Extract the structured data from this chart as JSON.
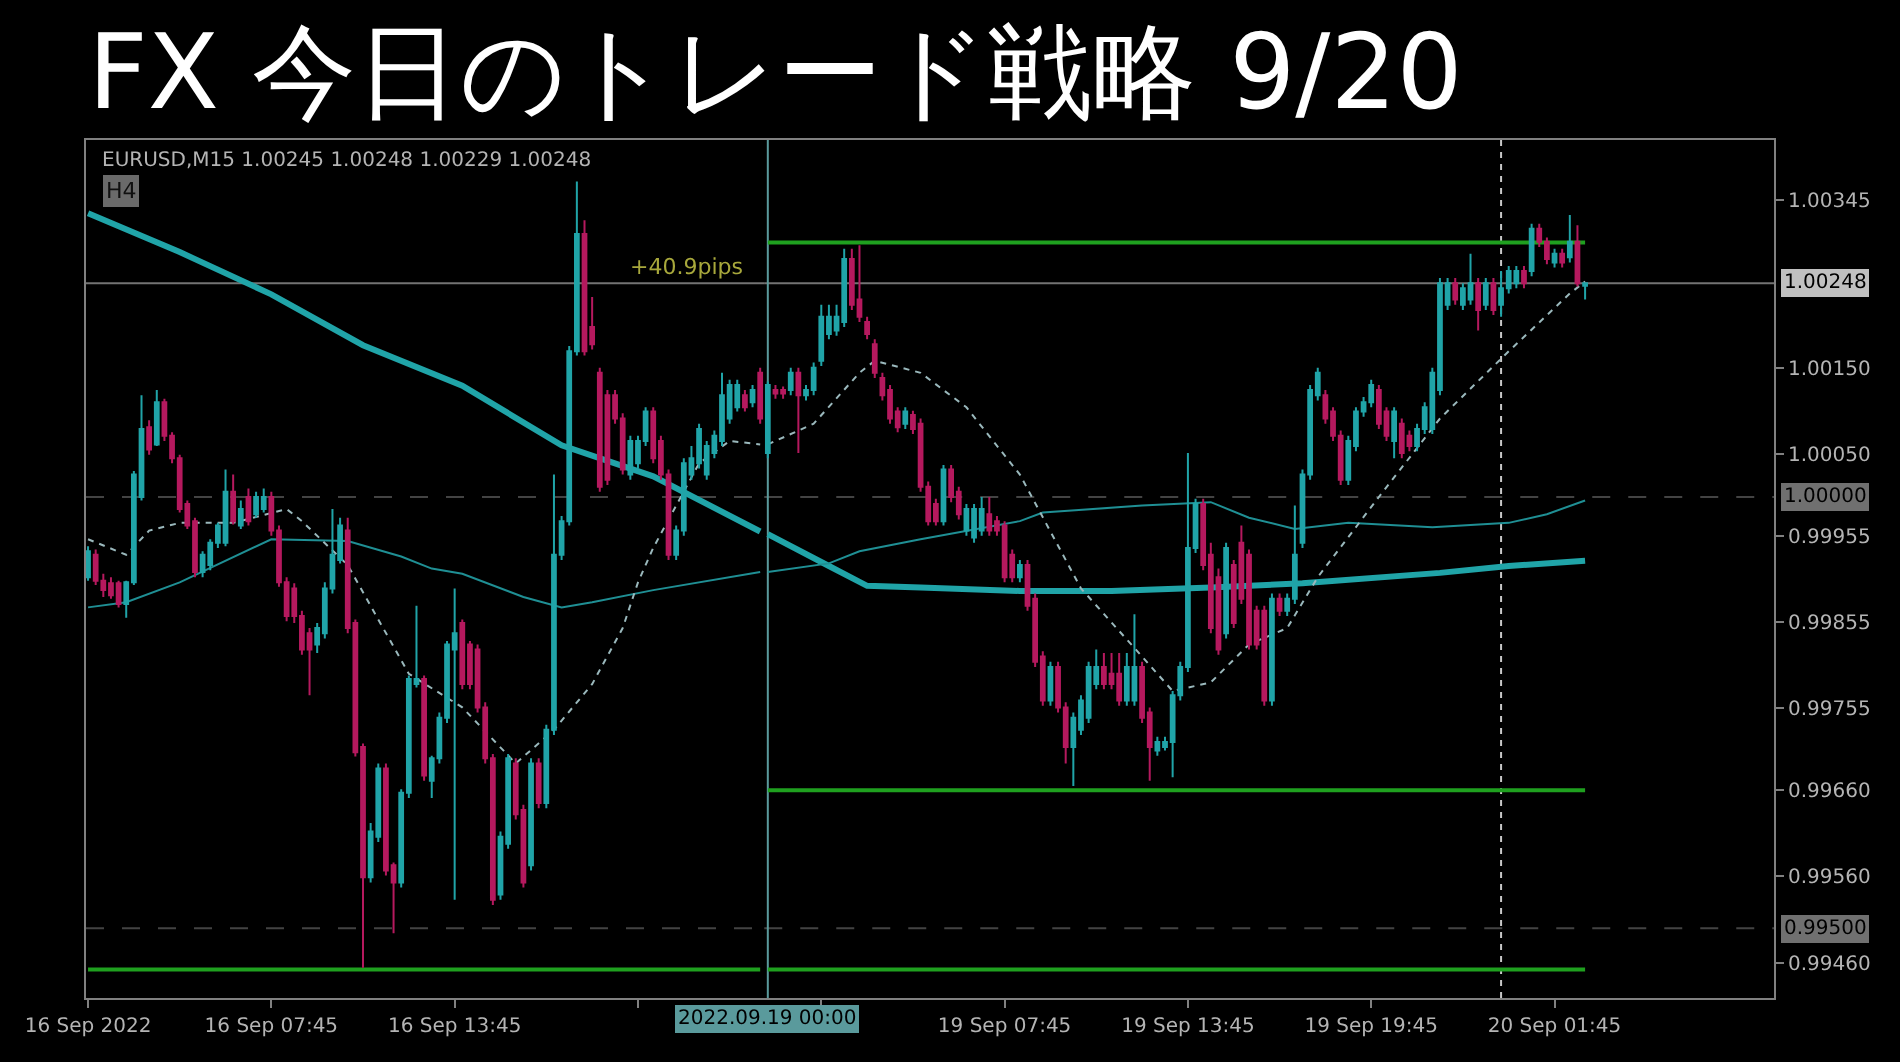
{
  "chart_data": [
    {
      "type": "candlestick",
      "title": "FX 今日のトレード戦略 9/20",
      "subtitle": "EURUSD,M15 1.00245 1.00248 1.00229 1.00248",
      "annotations": [
        "H4",
        "+40.9pips"
      ],
      "x": [
        "2022-09-16T01:45",
        "2022-09-16T02:00",
        "2022-09-16T02:15",
        "2022-09-16T02:30",
        "2022-09-16T02:45",
        "2022-09-16T03:00",
        "2022-09-16T03:15",
        "2022-09-16T03:30",
        "2022-09-16T03:45",
        "2022-09-16T04:00",
        "2022-09-16T04:15",
        "2022-09-16T04:30",
        "2022-09-16T04:45",
        "2022-09-16T05:00",
        "2022-09-16T05:15",
        "2022-09-16T05:30",
        "2022-09-16T05:45",
        "2022-09-16T06:00",
        "2022-09-16T06:15",
        "2022-09-16T06:30",
        "2022-09-16T06:45",
        "2022-09-16T07:00",
        "2022-09-16T07:15",
        "2022-09-16T07:30",
        "2022-09-16T07:45",
        "2022-09-16T08:00",
        "2022-09-16T08:15",
        "2022-09-16T08:30",
        "2022-09-16T08:45",
        "2022-09-16T09:00",
        "2022-09-16T09:15",
        "2022-09-16T09:30",
        "2022-09-16T09:45",
        "2022-09-16T10:00",
        "2022-09-16T10:15",
        "2022-09-16T10:30",
        "2022-09-16T10:45",
        "2022-09-16T11:00",
        "2022-09-16T11:15",
        "2022-09-16T11:30",
        "2022-09-16T11:45",
        "2022-09-16T12:00",
        "2022-09-16T12:15",
        "2022-09-16T12:30",
        "2022-09-16T12:45",
        "2022-09-16T13:00",
        "2022-09-16T13:15",
        "2022-09-16T13:30",
        "2022-09-16T13:45",
        "2022-09-16T14:00",
        "2022-09-16T14:15",
        "2022-09-16T14:30",
        "2022-09-16T14:45",
        "2022-09-16T15:00",
        "2022-09-16T15:15",
        "2022-09-16T15:30",
        "2022-09-16T15:45",
        "2022-09-16T16:00",
        "2022-09-16T16:15",
        "2022-09-16T16:30",
        "2022-09-16T16:45",
        "2022-09-16T17:00",
        "2022-09-16T17:15",
        "2022-09-16T17:30",
        "2022-09-16T17:45",
        "2022-09-16T18:00",
        "2022-09-16T18:15",
        "2022-09-16T18:30",
        "2022-09-16T18:45",
        "2022-09-16T19:00",
        "2022-09-16T19:15",
        "2022-09-16T19:30",
        "2022-09-16T19:45",
        "2022-09-16T20:00",
        "2022-09-16T20:15",
        "2022-09-16T20:30",
        "2022-09-16T20:45",
        "2022-09-16T21:00",
        "2022-09-16T21:15",
        "2022-09-16T21:30",
        "2022-09-16T21:45",
        "2022-09-16T22:00",
        "2022-09-16T22:15",
        "2022-09-16T22:30",
        "2022-09-16T22:45",
        "2022-09-16T23:00",
        "2022-09-16T23:15",
        "2022-09-16T23:30",
        "2022-09-16T23:45"
      ],
      "ohlc": [
        [
          0.99907,
          0.99943,
          0.99903,
          0.99937
        ],
        [
          0.99933,
          0.99939,
          0.99898,
          0.99903
        ],
        [
          0.99903,
          0.99911,
          0.99884,
          0.99892
        ],
        [
          0.999,
          0.99907,
          0.99882,
          0.99886
        ],
        [
          0.999,
          0.99903,
          0.99872,
          0.99876
        ],
        [
          0.99876,
          0.99903,
          0.9986,
          0.99901
        ],
        [
          0.99901,
          1.0003,
          0.99898,
          1.00026
        ],
        [
          1.0,
          1.00118,
          0.99996,
          1.00079
        ],
        [
          1.00081,
          1.00089,
          1.00049,
          1.00055
        ],
        [
          1.00061,
          1.00124,
          1.00059,
          1.0011
        ],
        [
          1.0011,
          1.00114,
          1.00065,
          1.00071
        ],
        [
          1.00071,
          1.00075,
          1.00039,
          1.00045
        ],
        [
          1.00045,
          1.00049,
          0.99982,
          0.99986
        ],
        [
          0.99992,
          0.99996,
          0.99963,
          0.99967
        ],
        [
          0.99972,
          0.99976,
          0.99907,
          0.99913
        ],
        [
          0.99913,
          0.99937,
          0.99907,
          0.99933
        ],
        [
          0.99921,
          0.99951,
          0.99915,
          0.99947
        ],
        [
          0.99947,
          0.9997,
          0.99941,
          0.99967
        ],
        [
          0.99947,
          1.00032,
          0.99943,
          1.00006
        ],
        [
          1.00006,
          1.00026,
          0.99968,
          0.99972
        ],
        [
          0.99967,
          0.99996,
          0.99963,
          0.99986
        ],
        [
          1.0,
          1.0001,
          0.99967,
          0.99972
        ],
        [
          0.9998,
          1.00006,
          0.99976,
          1.0
        ],
        [
          0.99986,
          1.0001,
          0.99982,
          1.0
        ],
        [
          1.0,
          1.00006,
          0.99955,
          0.99961
        ],
        [
          0.99961,
          0.99967,
          0.99896,
          0.99901
        ],
        [
          0.99901,
          0.99907,
          0.99856,
          0.99862
        ],
        [
          0.99894,
          0.999,
          0.99854,
          0.99862
        ],
        [
          0.99862,
          0.99868,
          0.99817,
          0.99823
        ],
        [
          0.99842,
          0.99848,
          0.9977,
          0.99823
        ],
        [
          0.99829,
          0.99854,
          0.99819,
          0.99848
        ],
        [
          0.99842,
          0.99901,
          0.99836,
          0.99894
        ],
        [
          0.99894,
          0.99986,
          0.99888,
          0.99933
        ],
        [
          0.99927,
          0.99976,
          0.99923,
          0.99967
        ],
        [
          0.99961,
          0.99976,
          0.99842,
          0.99848
        ],
        [
          0.99854,
          0.99858,
          0.99699,
          0.99704
        ],
        [
          0.9971,
          0.99714,
          0.99454,
          0.99559
        ],
        [
          0.99559,
          0.99622,
          0.99553,
          0.99612
        ],
        [
          0.99606,
          0.99691,
          0.996,
          0.99685
        ],
        [
          0.99685,
          0.99691,
          0.99561,
          0.99567
        ],
        [
          0.99573,
          0.99576,
          0.99494,
          0.99553
        ],
        [
          0.99553,
          0.99661,
          0.99547,
          0.99657
        ],
        [
          0.99657,
          0.99793,
          0.99651,
          0.99789
        ],
        [
          0.99783,
          0.99874,
          0.99779,
          0.99789
        ],
        [
          0.99789,
          0.99793,
          0.99671,
          0.99677
        ],
        [
          0.99671,
          0.997,
          0.99651,
          0.99697
        ],
        [
          0.99697,
          0.9975,
          0.99691,
          0.99744
        ],
        [
          0.99744,
          0.99833,
          0.99738,
          0.99829
        ],
        [
          0.99823,
          0.99894,
          0.99533,
          0.99842
        ],
        [
          0.99854,
          0.99858,
          0.99777,
          0.99783
        ],
        [
          0.99829,
          0.99833,
          0.99777,
          0.99783
        ],
        [
          0.99823,
          0.99829,
          0.9975,
          0.99756
        ],
        [
          0.99756,
          0.99762,
          0.99691,
          0.99697
        ],
        [
          0.99697,
          0.99702,
          0.99527,
          0.99533
        ],
        [
          0.99539,
          0.99612,
          0.99533,
          0.99606
        ],
        [
          0.99598,
          0.99702,
          0.99592,
          0.99697
        ],
        [
          0.99691,
          0.99697,
          0.99626,
          0.99632
        ],
        [
          0.99637,
          0.99643,
          0.99547,
          0.99553
        ],
        [
          0.99573,
          0.99697,
          0.99567,
          0.99691
        ],
        [
          0.99691,
          0.99697,
          0.99639,
          0.99645
        ],
        [
          0.99645,
          0.99736,
          0.99639,
          0.9973
        ],
        [
          0.9973,
          1.00026,
          0.99724,
          0.99933
        ],
        [
          0.99933,
          0.99978,
          0.99927,
          0.99972
        ],
        [
          0.99972,
          1.00175,
          0.99967,
          1.00169
        ],
        [
          1.00169,
          1.00366,
          1.00164,
          1.00305
        ],
        [
          1.00305,
          1.00321,
          1.00164,
          1.00169
        ],
        [
          1.00197,
          1.00232,
          1.00171,
          1.00177
        ],
        [
          1.00144,
          1.0015,
          1.00006,
          1.00012
        ],
        [
          1.00118,
          1.00124,
          1.00014,
          1.0002
        ],
        [
          1.00118,
          1.00124,
          1.00085,
          1.00091
        ],
        [
          1.00091,
          1.00097,
          1.00026,
          1.00032
        ],
        [
          1.00026,
          1.00071,
          1.0002,
          1.00065
        ],
        [
          1.00039,
          1.00071,
          1.00033,
          1.00065
        ],
        [
          1.00065,
          1.00104,
          1.00059,
          1.00099
        ],
        [
          1.00099,
          1.00104,
          1.00039,
          1.00045
        ],
        [
          1.00065,
          1.00071,
          1.0002,
          1.00026
        ],
        [
          1.00026,
          1.00032,
          0.99927,
          0.99933
        ],
        [
          0.99933,
          0.99967,
          0.99927,
          0.99961
        ],
        [
          0.99961,
          1.00045,
          0.99955,
          1.00039
        ],
        [
          1.00026,
          1.00059,
          1.0002,
          1.00045
        ],
        [
          1.00039,
          1.00085,
          1.00033,
          1.00079
        ],
        [
          1.00026,
          1.00065,
          1.0002,
          1.00059
        ],
        [
          1.00051,
          1.00077,
          1.00045,
          1.00071
        ],
        [
          1.00065,
          1.00144,
          1.00059,
          1.00118
        ],
        [
          1.00091,
          1.00136,
          1.00085,
          1.0013
        ],
        [
          1.00104,
          1.00136,
          1.00099,
          1.0013
        ],
        [
          1.00118,
          1.00124,
          1.00099,
          1.00104
        ],
        [
          1.0011,
          1.0013,
          1.00104,
          1.00124
        ],
        [
          1.00144,
          1.0015,
          1.00085,
          1.00091
        ]
      ],
      "colors": [
        "#20a4a8",
        "#b5195e",
        "#b5195e",
        "#b5195e",
        "#b5195e",
        "#20a4a8",
        "#20a4a8",
        "#20a4a8",
        "#b5195e",
        "#20a4a8",
        "#b5195e",
        "#b5195e",
        "#b5195e",
        "#b5195e",
        "#b5195e",
        "#20a4a8",
        "#20a4a8",
        "#20a4a8",
        "#20a4a8",
        "#b5195e",
        "#20a4a8",
        "#b5195e",
        "#20a4a8",
        "#20a4a8",
        "#b5195e",
        "#b5195e",
        "#b5195e",
        "#b5195e",
        "#b5195e",
        "#b5195e",
        "#20a4a8",
        "#20a4a8",
        "#20a4a8",
        "#20a4a8",
        "#b5195e",
        "#b5195e",
        "#b5195e",
        "#20a4a8",
        "#20a4a8",
        "#b5195e",
        "#b5195e",
        "#20a4a8",
        "#20a4a8",
        "#20a4a8",
        "#b5195e",
        "#20a4a8",
        "#20a4a8",
        "#20a4a8",
        "#20a4a8",
        "#b5195e",
        "#b5195e",
        "#b5195e",
        "#b5195e",
        "#b5195e",
        "#20a4a8",
        "#20a4a8",
        "#b5195e",
        "#b5195e",
        "#20a4a8",
        "#b5195e",
        "#20a4a8",
        "#20a4a8",
        "#20a4a8",
        "#20a4a8",
        "#20a4a8",
        "#b5195e",
        "#b5195e",
        "#b5195e",
        "#b5195e",
        "#b5195e",
        "#b5195e",
        "#20a4a8",
        "#20a4a8",
        "#20a4a8",
        "#b5195e",
        "#b5195e",
        "#b5195e",
        "#20a4a8",
        "#20a4a8",
        "#20a4a8",
        "#20a4a8",
        "#20a4a8",
        "#20a4a8",
        "#20a4a8",
        "#20a4a8",
        "#20a4a8",
        "#b5195e",
        "#20a4a8",
        "#b5195e"
      ],
      "series": [
        {
          "type": "line",
          "color": "#20a4a8",
          "x": [
            "2022-09-16T01:45",
            "2022-09-16T04:45",
            "2022-09-16T07:45",
            "2022-09-16T10:45",
            "2022-09-16T14:00",
            "2022-09-16T17:15",
            "2022-09-16T20:15",
            "2022-09-16T23:45"
          ],
          "values": [
            1.00329,
            1.00284,
            1.00235,
            1.00176,
            1.00129,
            1.0006,
            1.00024,
            0.9996
          ]
        },
        {
          "type": "line",
          "color": "#1f8f94",
          "x": [
            "2022-09-16T01:45",
            "2022-09-16T03:00",
            "2022-09-16T04:45",
            "2022-09-16T07:45",
            "2022-09-16T10:15",
            "2022-09-16T12:00",
            "2022-09-16T13:00",
            "2022-09-16T14:00",
            "2022-09-16T16:00",
            "2022-09-16T17:15",
            "2022-09-16T18:15",
            "2022-09-16T20:15",
            "2022-09-16T23:45"
          ],
          "values": [
            0.99872,
            0.99878,
            0.99901,
            0.99951,
            0.99949,
            0.99931,
            0.99917,
            0.99911,
            0.99884,
            0.99872,
            0.99878,
            0.99892,
            0.99913
          ]
        },
        {
          "type": "line",
          "color": "#9ab8bc",
          "line_style": "dotted",
          "x": [
            "2022-09-16T01:45",
            "2022-09-16T03:00",
            "2022-09-16T03:45",
            "2022-09-16T04:45",
            "2022-09-16T06:30",
            "2022-09-16T08:15",
            "2022-09-16T08:45",
            "2022-09-16T10:15",
            "2022-09-16T12:15",
            "2022-09-16T14:00",
            "2022-09-16T15:45",
            "2022-09-16T17:00",
            "2022-09-16T18:15",
            "2022-09-16T19:15",
            "2022-09-16T19:45",
            "2022-09-16T20:15",
            "2022-09-16T21:45",
            "2022-09-16T22:45",
            "2022-09-16T23:45"
          ],
          "values": [
            0.99951,
            0.99933,
            0.99961,
            0.9997,
            0.9997,
            0.99986,
            0.99972,
            0.99921,
            0.99795,
            0.99756,
            0.99691,
            0.9973,
            0.99783,
            0.99848,
            0.99901,
            0.99941,
            1.00039,
            1.00065,
            1.00061
          ]
        },
        {
          "type": "line",
          "color": "#1fa01f",
          "x": [
            "2022-09-16T01:45",
            "2022-09-16T23:45"
          ],
          "values": [
            0.99452,
            0.99452
          ]
        }
      ],
      "xlim": [
        "2022-09-16T01:41",
        "2022-09-16T23:53"
      ],
      "xticks": [
        {
          "value": "2022-09-16T01:45",
          "label": "16 Sep 2022"
        },
        {
          "value": "2022-09-16T07:45",
          "label": "16 Sep 07:45"
        },
        {
          "value": "2022-09-16T13:45",
          "label": "16 Sep 13:45"
        },
        {
          "value": "2022-09-16T19:45",
          "label": null
        }
      ],
      "ylim": [
        0.99419,
        1.00414
      ],
      "tick_labels": "x",
      "ref_lines": [
        {
          "axis": "y",
          "value": 1.00248,
          "color": "#c0c0c0"
        },
        {
          "axis": "y",
          "value": 1.0,
          "color": "#707070",
          "line_style": "dashed"
        },
        {
          "axis": "y",
          "value": 0.995,
          "color": "#707070",
          "line_style": "dashed"
        }
      ]
    },
    {
      "type": "candlestick",
      "x": [
        "2022-09-19T00:00",
        "2022-09-19T00:15",
        "2022-09-19T00:30",
        "2022-09-19T00:45",
        "2022-09-19T01:00",
        "2022-09-19T01:15",
        "2022-09-19T01:30",
        "2022-09-19T01:45",
        "2022-09-19T02:00",
        "2022-09-19T02:15",
        "2022-09-19T02:30",
        "2022-09-19T02:45",
        "2022-09-19T03:00",
        "2022-09-19T03:15",
        "2022-09-19T03:30",
        "2022-09-19T03:45",
        "2022-09-19T04:00",
        "2022-09-19T04:15",
        "2022-09-19T04:30",
        "2022-09-19T04:45",
        "2022-09-19T05:00",
        "2022-09-19T05:15",
        "2022-09-19T05:30",
        "2022-09-19T05:45",
        "2022-09-19T06:00",
        "2022-09-19T06:15",
        "2022-09-19T06:30",
        "2022-09-19T06:45",
        "2022-09-19T07:00",
        "2022-09-19T07:15",
        "2022-09-19T07:30",
        "2022-09-19T07:45",
        "2022-09-19T08:00",
        "2022-09-19T08:15",
        "2022-09-19T08:30",
        "2022-09-19T08:45",
        "2022-09-19T09:00",
        "2022-09-19T09:15",
        "2022-09-19T09:30",
        "2022-09-19T09:45",
        "2022-09-19T10:00",
        "2022-09-19T10:15",
        "2022-09-19T10:30",
        "2022-09-19T10:45",
        "2022-09-19T11:00",
        "2022-09-19T11:15",
        "2022-09-19T11:30",
        "2022-09-19T11:45",
        "2022-09-19T12:00",
        "2022-09-19T12:15",
        "2022-09-19T12:30",
        "2022-09-19T12:45",
        "2022-09-19T13:00",
        "2022-09-19T13:15",
        "2022-09-19T13:30",
        "2022-09-19T13:45",
        "2022-09-19T14:00",
        "2022-09-19T14:15",
        "2022-09-19T14:30",
        "2022-09-19T14:45",
        "2022-09-19T15:00",
        "2022-09-19T15:15",
        "2022-09-19T15:30",
        "2022-09-19T15:45",
        "2022-09-19T16:00",
        "2022-09-19T16:15",
        "2022-09-19T16:30",
        "2022-09-19T16:45",
        "2022-09-19T17:00",
        "2022-09-19T17:15",
        "2022-09-19T17:30",
        "2022-09-19T17:45",
        "2022-09-19T18:00",
        "2022-09-19T18:15",
        "2022-09-19T18:30",
        "2022-09-19T18:45",
        "2022-09-19T19:00",
        "2022-09-19T19:15",
        "2022-09-19T19:30",
        "2022-09-19T19:45",
        "2022-09-19T20:00",
        "2022-09-19T20:15",
        "2022-09-19T20:30",
        "2022-09-19T20:45",
        "2022-09-19T21:00",
        "2022-09-19T21:15",
        "2022-09-19T21:30",
        "2022-09-19T21:45",
        "2022-09-19T22:00",
        "2022-09-19T22:15",
        "2022-09-19T22:30",
        "2022-09-19T22:45",
        "2022-09-19T23:00",
        "2022-09-19T23:15",
        "2022-09-19T23:30",
        "2022-09-19T23:45",
        "2022-09-20T00:00",
        "2022-09-20T00:15",
        "2022-09-20T00:30",
        "2022-09-20T00:45",
        "2022-09-20T01:00",
        "2022-09-20T01:15",
        "2022-09-20T01:30",
        "2022-09-20T01:45",
        "2022-09-20T02:00",
        "2022-09-20T02:15",
        "2022-09-20T02:30",
        "2022-09-20T02:45"
      ],
      "ohlc": [
        [
          1.00051,
          1.00134,
          1.00045,
          1.0013
        ],
        [
          1.00124,
          1.0013,
          1.00114,
          1.0012
        ],
        [
          1.00124,
          1.00128,
          1.00114,
          1.0012
        ],
        [
          1.00124,
          1.0015,
          1.00118,
          1.00144
        ],
        [
          1.00144,
          1.0015,
          1.00051,
          1.00118
        ],
        [
          1.00118,
          1.0013,
          1.00112,
          1.00124
        ],
        [
          1.00124,
          1.00156,
          1.00118,
          1.0015
        ],
        [
          1.00158,
          1.00223,
          1.00152,
          1.00209
        ],
        [
          1.00189,
          1.00223,
          1.00183,
          1.00209
        ],
        [
          1.00193,
          1.00223,
          1.00187,
          1.00209
        ],
        [
          1.00203,
          1.00288,
          1.00197,
          1.00276
        ],
        [
          1.00276,
          1.00288,
          1.00217,
          1.00223
        ],
        [
          1.00229,
          1.00292,
          1.00203,
          1.00209
        ],
        [
          1.00203,
          1.00209,
          1.00183,
          1.00189
        ],
        [
          1.00177,
          1.00183,
          1.00138,
          1.00144
        ],
        [
          1.00138,
          1.00144,
          1.00112,
          1.00118
        ],
        [
          1.00124,
          1.0013,
          1.00085,
          1.00091
        ],
        [
          1.00099,
          1.00104,
          1.00075,
          1.00081
        ],
        [
          1.00085,
          1.00104,
          1.00079,
          1.00099
        ],
        [
          1.00095,
          1.001,
          1.00073,
          1.00079
        ],
        [
          1.00085,
          1.00091,
          1.00006,
          1.00012
        ],
        [
          1.00012,
          1.00018,
          0.99967,
          0.99972
        ],
        [
          0.99992,
          0.99998,
          0.99967,
          0.99972
        ],
        [
          0.99972,
          1.00037,
          0.99967,
          1.00032
        ],
        [
          1.00032,
          1.00037,
          0.99994,
          1.0
        ],
        [
          1.00006,
          1.00012,
          0.99974,
          0.9998
        ],
        [
          0.99961,
          0.99992,
          0.99955,
          0.99986
        ],
        [
          0.99953,
          0.99992,
          0.99947,
          0.99986
        ],
        [
          0.99961,
          1.0,
          0.99955,
          0.99986
        ],
        [
          0.9998,
          1.0,
          0.99955,
          0.99961
        ],
        [
          0.99972,
          0.99978,
          0.99955,
          0.99961
        ],
        [
          0.99967,
          0.99972,
          0.99901,
          0.99907
        ],
        [
          0.99933,
          0.99939,
          0.99901,
          0.99907
        ],
        [
          0.99907,
          0.99927,
          0.99901,
          0.99921
        ],
        [
          0.99921,
          0.99927,
          0.99868,
          0.99874
        ],
        [
          0.99882,
          0.99888,
          0.99803,
          0.99809
        ],
        [
          0.99815,
          0.99821,
          0.99758,
          0.99764
        ],
        [
          0.99764,
          0.99809,
          0.99758,
          0.99803
        ],
        [
          0.99803,
          0.99809,
          0.9975,
          0.99756
        ],
        [
          0.99756,
          0.99762,
          0.99691,
          0.9971
        ],
        [
          0.9971,
          0.9975,
          0.99665,
          0.99744
        ],
        [
          0.9973,
          0.9977,
          0.99724,
          0.99764
        ],
        [
          0.99744,
          0.99809,
          0.99738,
          0.99803
        ],
        [
          0.99783,
          0.99823,
          0.99777,
          0.99803
        ],
        [
          0.99803,
          0.99819,
          0.99777,
          0.99783
        ],
        [
          0.99795,
          0.99819,
          0.99777,
          0.99783
        ],
        [
          0.99795,
          0.99819,
          0.99758,
          0.99764
        ],
        [
          0.99764,
          0.99819,
          0.99758,
          0.99803
        ],
        [
          0.99764,
          0.99864,
          0.99758,
          0.99803
        ],
        [
          0.99803,
          0.99809,
          0.99738,
          0.99744
        ],
        [
          0.9975,
          0.99756,
          0.99671,
          0.9971
        ],
        [
          0.99706,
          0.99722,
          0.997,
          0.99716
        ],
        [
          0.9971,
          0.99722,
          0.99706,
          0.99716
        ],
        [
          0.99716,
          0.99775,
          0.99675,
          0.9977
        ],
        [
          0.9977,
          0.99809,
          0.99764,
          0.99803
        ],
        [
          0.99803,
          1.00051,
          0.99797,
          0.99941
        ],
        [
          0.99941,
          0.99998,
          0.99935,
          0.99992
        ],
        [
          0.99992,
          0.99998,
          0.99915,
          0.99921
        ],
        [
          0.99933,
          0.99947,
          0.99842,
          0.99848
        ],
        [
          0.99907,
          0.99917,
          0.99817,
          0.99823
        ],
        [
          0.99842,
          0.99947,
          0.99836,
          0.99941
        ],
        [
          0.99921,
          0.99927,
          0.99848,
          0.99854
        ],
        [
          0.99947,
          0.99967,
          0.99876,
          0.99882
        ],
        [
          0.99933,
          0.99939,
          0.99823,
          0.99829
        ],
        [
          0.99868,
          0.99874,
          0.99823,
          0.99829
        ],
        [
          0.99868,
          0.99874,
          0.99758,
          0.99764
        ],
        [
          0.99764,
          0.99888,
          0.99758,
          0.99882
        ],
        [
          0.99882,
          0.99888,
          0.99862,
          0.99868
        ],
        [
          0.99868,
          0.99888,
          0.99862,
          0.99882
        ],
        [
          0.99882,
          0.9999,
          0.99876,
          0.99933
        ],
        [
          0.99947,
          1.00032,
          0.99941,
          1.00026
        ],
        [
          1.00026,
          1.0013,
          1.0002,
          1.00124
        ],
        [
          1.00118,
          1.0015,
          1.00112,
          1.00144
        ],
        [
          1.00118,
          1.00124,
          1.00085,
          1.00091
        ],
        [
          1.00099,
          1.00104,
          1.00065,
          1.00071
        ],
        [
          1.00071,
          1.00077,
          1.00014,
          1.0002
        ],
        [
          1.0002,
          1.00071,
          1.00014,
          1.00065
        ],
        [
          1.00059,
          1.00104,
          1.00053,
          1.00099
        ],
        [
          1.00099,
          1.00116,
          1.00093,
          1.0011
        ],
        [
          1.0011,
          1.00136,
          1.00104,
          1.0013
        ],
        [
          1.00124,
          1.0013,
          1.00079,
          1.00085
        ],
        [
          1.00099,
          1.00104,
          1.00065,
          1.00071
        ],
        [
          1.00065,
          1.00104,
          1.00045,
          1.00099
        ],
        [
          1.00085,
          1.00091,
          1.00045,
          1.00051
        ],
        [
          1.00071,
          1.00077,
          1.00053,
          1.00059
        ],
        [
          1.00059,
          1.00085,
          1.00053,
          1.00079
        ],
        [
          1.00079,
          1.0011,
          1.00073,
          1.00104
        ],
        [
          1.00079,
          1.0015,
          1.00073,
          1.00144
        ],
        [
          1.00124,
          1.00254,
          1.00118,
          1.00248
        ],
        [
          1.00223,
          1.00254,
          1.00217,
          1.00248
        ],
        [
          1.00248,
          1.00254,
          1.00223,
          1.00229
        ],
        [
          1.00223,
          1.00248,
          1.00217,
          1.00242
        ],
        [
          1.00229,
          1.00282,
          1.00223,
          1.00248
        ],
        [
          1.00248,
          1.00254,
          1.00193,
          1.00217
        ],
        [
          1.00223,
          1.00254,
          1.00217,
          1.00248
        ],
        [
          1.00248,
          1.00254,
          1.00211,
          1.00217
        ],
        [
          1.00223,
          1.00262,
          1.00209,
          1.00242
        ],
        [
          1.00242,
          1.00268,
          1.00236,
          1.00262
        ],
        [
          1.00248,
          1.00268,
          1.00242,
          1.00262
        ],
        [
          1.00262,
          1.00268,
          1.00242,
          1.00248
        ],
        [
          1.00262,
          1.00317,
          1.00256,
          1.00311
        ],
        [
          1.00311,
          1.00317,
          1.0029,
          1.00296
        ],
        [
          1.00296,
          1.00301,
          1.0027,
          1.00276
        ],
        [
          1.00272,
          1.00288,
          1.00266,
          1.00282
        ],
        [
          1.00282,
          1.00288,
          1.00266,
          1.00272
        ],
        [
          1.00278,
          1.00327,
          1.00272,
          1.00296
        ],
        [
          1.00296,
          1.00315,
          1.00244,
          1.00248
        ],
        [
          1.00245,
          1.00248,
          1.00229,
          1.00248
        ]
      ],
      "colors": [
        "#20a4a8",
        "#b5195e",
        "#b5195e",
        "#20a4a8",
        "#b5195e",
        "#20a4a8",
        "#20a4a8",
        "#20a4a8",
        "#20a4a8",
        "#20a4a8",
        "#20a4a8",
        "#b5195e",
        "#b5195e",
        "#b5195e",
        "#b5195e",
        "#b5195e",
        "#b5195e",
        "#b5195e",
        "#20a4a8",
        "#b5195e",
        "#b5195e",
        "#b5195e",
        "#b5195e",
        "#20a4a8",
        "#b5195e",
        "#b5195e",
        "#20a4a8",
        "#20a4a8",
        "#20a4a8",
        "#b5195e",
        "#b5195e",
        "#b5195e",
        "#b5195e",
        "#20a4a8",
        "#b5195e",
        "#b5195e",
        "#b5195e",
        "#20a4a8",
        "#b5195e",
        "#b5195e",
        "#20a4a8",
        "#20a4a8",
        "#20a4a8",
        "#20a4a8",
        "#b5195e",
        "#b5195e",
        "#b5195e",
        "#20a4a8",
        "#20a4a8",
        "#b5195e",
        "#b5195e",
        "#20a4a8",
        "#20a4a8",
        "#20a4a8",
        "#20a4a8",
        "#20a4a8",
        "#20a4a8",
        "#b5195e",
        "#b5195e",
        "#b5195e",
        "#20a4a8",
        "#b5195e",
        "#b5195e",
        "#b5195e",
        "#b5195e",
        "#b5195e",
        "#20a4a8",
        "#b5195e",
        "#20a4a8",
        "#20a4a8",
        "#20a4a8",
        "#20a4a8",
        "#20a4a8",
        "#b5195e",
        "#b5195e",
        "#b5195e",
        "#20a4a8",
        "#20a4a8",
        "#20a4a8",
        "#20a4a8",
        "#b5195e",
        "#b5195e",
        "#20a4a8",
        "#b5195e",
        "#b5195e",
        "#20a4a8",
        "#20a4a8",
        "#20a4a8",
        "#20a4a8",
        "#20a4a8",
        "#b5195e",
        "#20a4a8",
        "#20a4a8",
        "#b5195e",
        "#20a4a8",
        "#b5195e",
        "#20a4a8",
        "#20a4a8",
        "#20a4a8",
        "#b5195e",
        "#20a4a8",
        "#b5195e",
        "#b5195e",
        "#20a4a8",
        "#b5195e",
        "#20a4a8",
        "#b5195e",
        "#20a4a8"
      ],
      "series": [
        {
          "type": "line",
          "color": "#20a4a8",
          "x": [
            "2022-09-19T00:00",
            "2022-09-19T02:00",
            "2022-09-19T03:15",
            "2022-09-19T05:00",
            "2022-09-19T08:15",
            "2022-09-19T11:15",
            "2022-09-19T14:30",
            "2022-09-19T17:30",
            "2022-09-19T22:00",
            "2022-09-20T00:15",
            "2022-09-20T02:45"
          ],
          "values": [
            0.99957,
            0.9992,
            0.99897,
            0.99895,
            0.99891,
            0.99891,
            0.99895,
            0.999,
            0.99912,
            0.9992,
            0.99926
          ]
        },
        {
          "type": "line",
          "color": "#1f8f94",
          "x": [
            "2022-09-19T00:00",
            "2022-09-19T02:00",
            "2022-09-19T03:00",
            "2022-09-19T05:00",
            "2022-09-19T08:15",
            "2022-09-19T09:00",
            "2022-09-19T12:15",
            "2022-09-19T14:30",
            "2022-09-19T15:45",
            "2022-09-19T17:15",
            "2022-09-19T19:00",
            "2022-09-19T21:45",
            "2022-09-20T00:15",
            "2022-09-20T01:30",
            "2022-09-20T02:45"
          ],
          "values": [
            0.99913,
            0.99923,
            0.99937,
            0.99951,
            0.99972,
            0.99982,
            0.9999,
            0.99994,
            0.99976,
            0.99963,
            0.9997,
            0.99965,
            0.9997,
            0.9998,
            0.99996
          ]
        },
        {
          "type": "line",
          "color": "#9ab8bc",
          "line_style": "dotted",
          "x": [
            "2022-09-19T00:00",
            "2022-09-19T01:30",
            "2022-09-19T03:00",
            "2022-09-19T03:30",
            "2022-09-19T05:00",
            "2022-09-19T06:30",
            "2022-09-19T08:15",
            "2022-09-19T10:15",
            "2022-09-19T12:15",
            "2022-09-19T13:15",
            "2022-09-19T14:30",
            "2022-09-19T15:45",
            "2022-09-19T17:00",
            "2022-09-19T18:00",
            "2022-09-19T20:00",
            "2022-09-19T22:00",
            "2022-09-20T00:15",
            "2022-09-20T02:15",
            "2022-09-20T02:45"
          ],
          "values": [
            1.00061,
            1.00085,
            1.00144,
            1.00158,
            1.00144,
            1.00104,
            1.00026,
            0.99894,
            0.99815,
            0.99775,
            0.99785,
            0.99829,
            0.99848,
            0.99907,
            1.0,
            1.00091,
            1.00169,
            1.00236,
            1.0025
          ]
        },
        {
          "type": "line",
          "color": "#1fa01f",
          "x": [
            "2022-09-19T00:00",
            "2022-09-20T02:45"
          ],
          "values": [
            1.00295,
            1.00295
          ]
        },
        {
          "type": "line",
          "color": "#1fa01f",
          "x": [
            "2022-09-19T00:00",
            "2022-09-20T02:45"
          ],
          "values": [
            0.9966,
            0.9966
          ]
        },
        {
          "type": "line",
          "color": "#1fa01f",
          "x": [
            "2022-09-19T00:00",
            "2022-09-20T02:45"
          ],
          "values": [
            0.99452,
            0.99452
          ]
        }
      ],
      "xlim": [
        "2022-09-18T23:53",
        "2022-09-20T08:56"
      ],
      "xticks": [
        {
          "value": "2022-09-19T01:45",
          "label": null
        },
        {
          "value": "2022-09-19T07:45",
          "label": "19 Sep 07:45"
        },
        {
          "value": "2022-09-19T13:45",
          "label": "19 Sep 13:45"
        },
        {
          "value": "2022-09-19T19:45",
          "label": "19 Sep 19:45"
        },
        {
          "value": "2022-09-20T01:45",
          "label": "20 Sep 01:45"
        }
      ],
      "ylim": [
        0.99419,
        1.00414
      ],
      "yticks": [
        1.00345,
        {
          "value": 1.0015,
          "label": "1.00150"
        },
        {
          "value": 1.0005,
          "label": "1.00050"
        },
        0.99955,
        0.99855,
        0.99755,
        {
          "value": 0.9966,
          "label": "0.99660"
        },
        {
          "value": 0.9956,
          "label": "0.99560"
        },
        {
          "value": 0.9946,
          "label": "0.99460"
        }
      ],
      "ref_lines": [
        {
          "axis": "y",
          "value": 1.00248,
          "label": "1.00248",
          "color": "#c0c0c0"
        },
        {
          "axis": "y",
          "value": 1.0,
          "label": "1.00000",
          "color": "#707070",
          "line_style": "dashed"
        },
        {
          "axis": "y",
          "value": 0.995,
          "label": "0.99500",
          "color": "#707070",
          "line_style": "dashed"
        },
        {
          "axis": "x",
          "value": "2022-09-19T00:00",
          "label": "2022.09.19 00:00",
          "color": "#5a9a9c"
        },
        {
          "axis": "x",
          "value": "2022-09-20T00:00",
          "color": "#c8c8c8",
          "line_style": "dotted"
        }
      ]
    }
  ]
}
